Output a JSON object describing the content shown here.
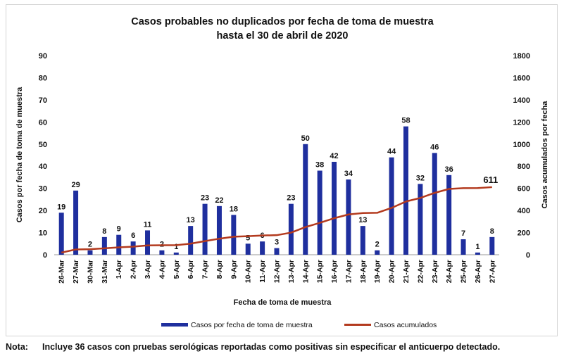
{
  "chart_data": {
    "type": "bar+line",
    "title": "Casos probables no duplicados por fecha de toma de muestra",
    "subtitle": "hasta el 30 de abril de 2020",
    "xlabel": "Fecha de toma de muestra",
    "ylabel_left": "Casos por fecha de toma de muestra",
    "ylabel_right": "Casos acumulados por fecha",
    "ylim_left": [
      0,
      90
    ],
    "yticks_left": [
      0,
      10,
      20,
      30,
      40,
      50,
      60,
      70,
      80,
      90
    ],
    "ylim_right": [
      0,
      1800
    ],
    "yticks_right": [
      0,
      200,
      400,
      600,
      800,
      1000,
      1200,
      1400,
      1600,
      1800
    ],
    "categories": [
      "26-Mar",
      "27-Mar",
      "30-Mar",
      "31-Mar",
      "1-Apr",
      "2-Apr",
      "3-Apr",
      "4-Apr",
      "5-Apr",
      "6-Apr",
      "7-Apr",
      "8-Apr",
      "9-Apr",
      "10-Apr",
      "11-Apr",
      "12-Apr",
      "13-Apr",
      "14-Apr",
      "15-Apr",
      "16-Apr",
      "17-Apr",
      "18-Apr",
      "19-Apr",
      "20-Apr",
      "21-Apr",
      "22-Apr",
      "23-Apr",
      "24-Apr",
      "25-Apr",
      "26-Apr",
      "27-Apr"
    ],
    "series": [
      {
        "name": "Casos por fecha de toma de muestra",
        "type": "bar",
        "axis": "left",
        "color": "#1f2f9e",
        "values": [
          19,
          29,
          2,
          8,
          9,
          6,
          11,
          2,
          1,
          13,
          23,
          22,
          18,
          5,
          6,
          3,
          23,
          50,
          38,
          42,
          34,
          13,
          2,
          44,
          58,
          32,
          46,
          36,
          7,
          1,
          8
        ]
      },
      {
        "name": "Casos acumulados",
        "type": "line",
        "axis": "right",
        "color": "#b33a1e",
        "values": [
          19,
          48,
          50,
          58,
          67,
          73,
          84,
          86,
          87,
          100,
          123,
          145,
          163,
          168,
          174,
          177,
          200,
          250,
          288,
          330,
          364,
          377,
          379,
          423,
          481,
          513,
          559,
          595,
          602,
          603,
          611
        ]
      }
    ],
    "end_label": "611",
    "legend_position": "bottom",
    "grid": false
  },
  "note": {
    "label": "Nota:",
    "text": "Incluye 36 casos con pruebas serológicas reportadas como positivas sin especificar el anticuerpo detectado."
  }
}
